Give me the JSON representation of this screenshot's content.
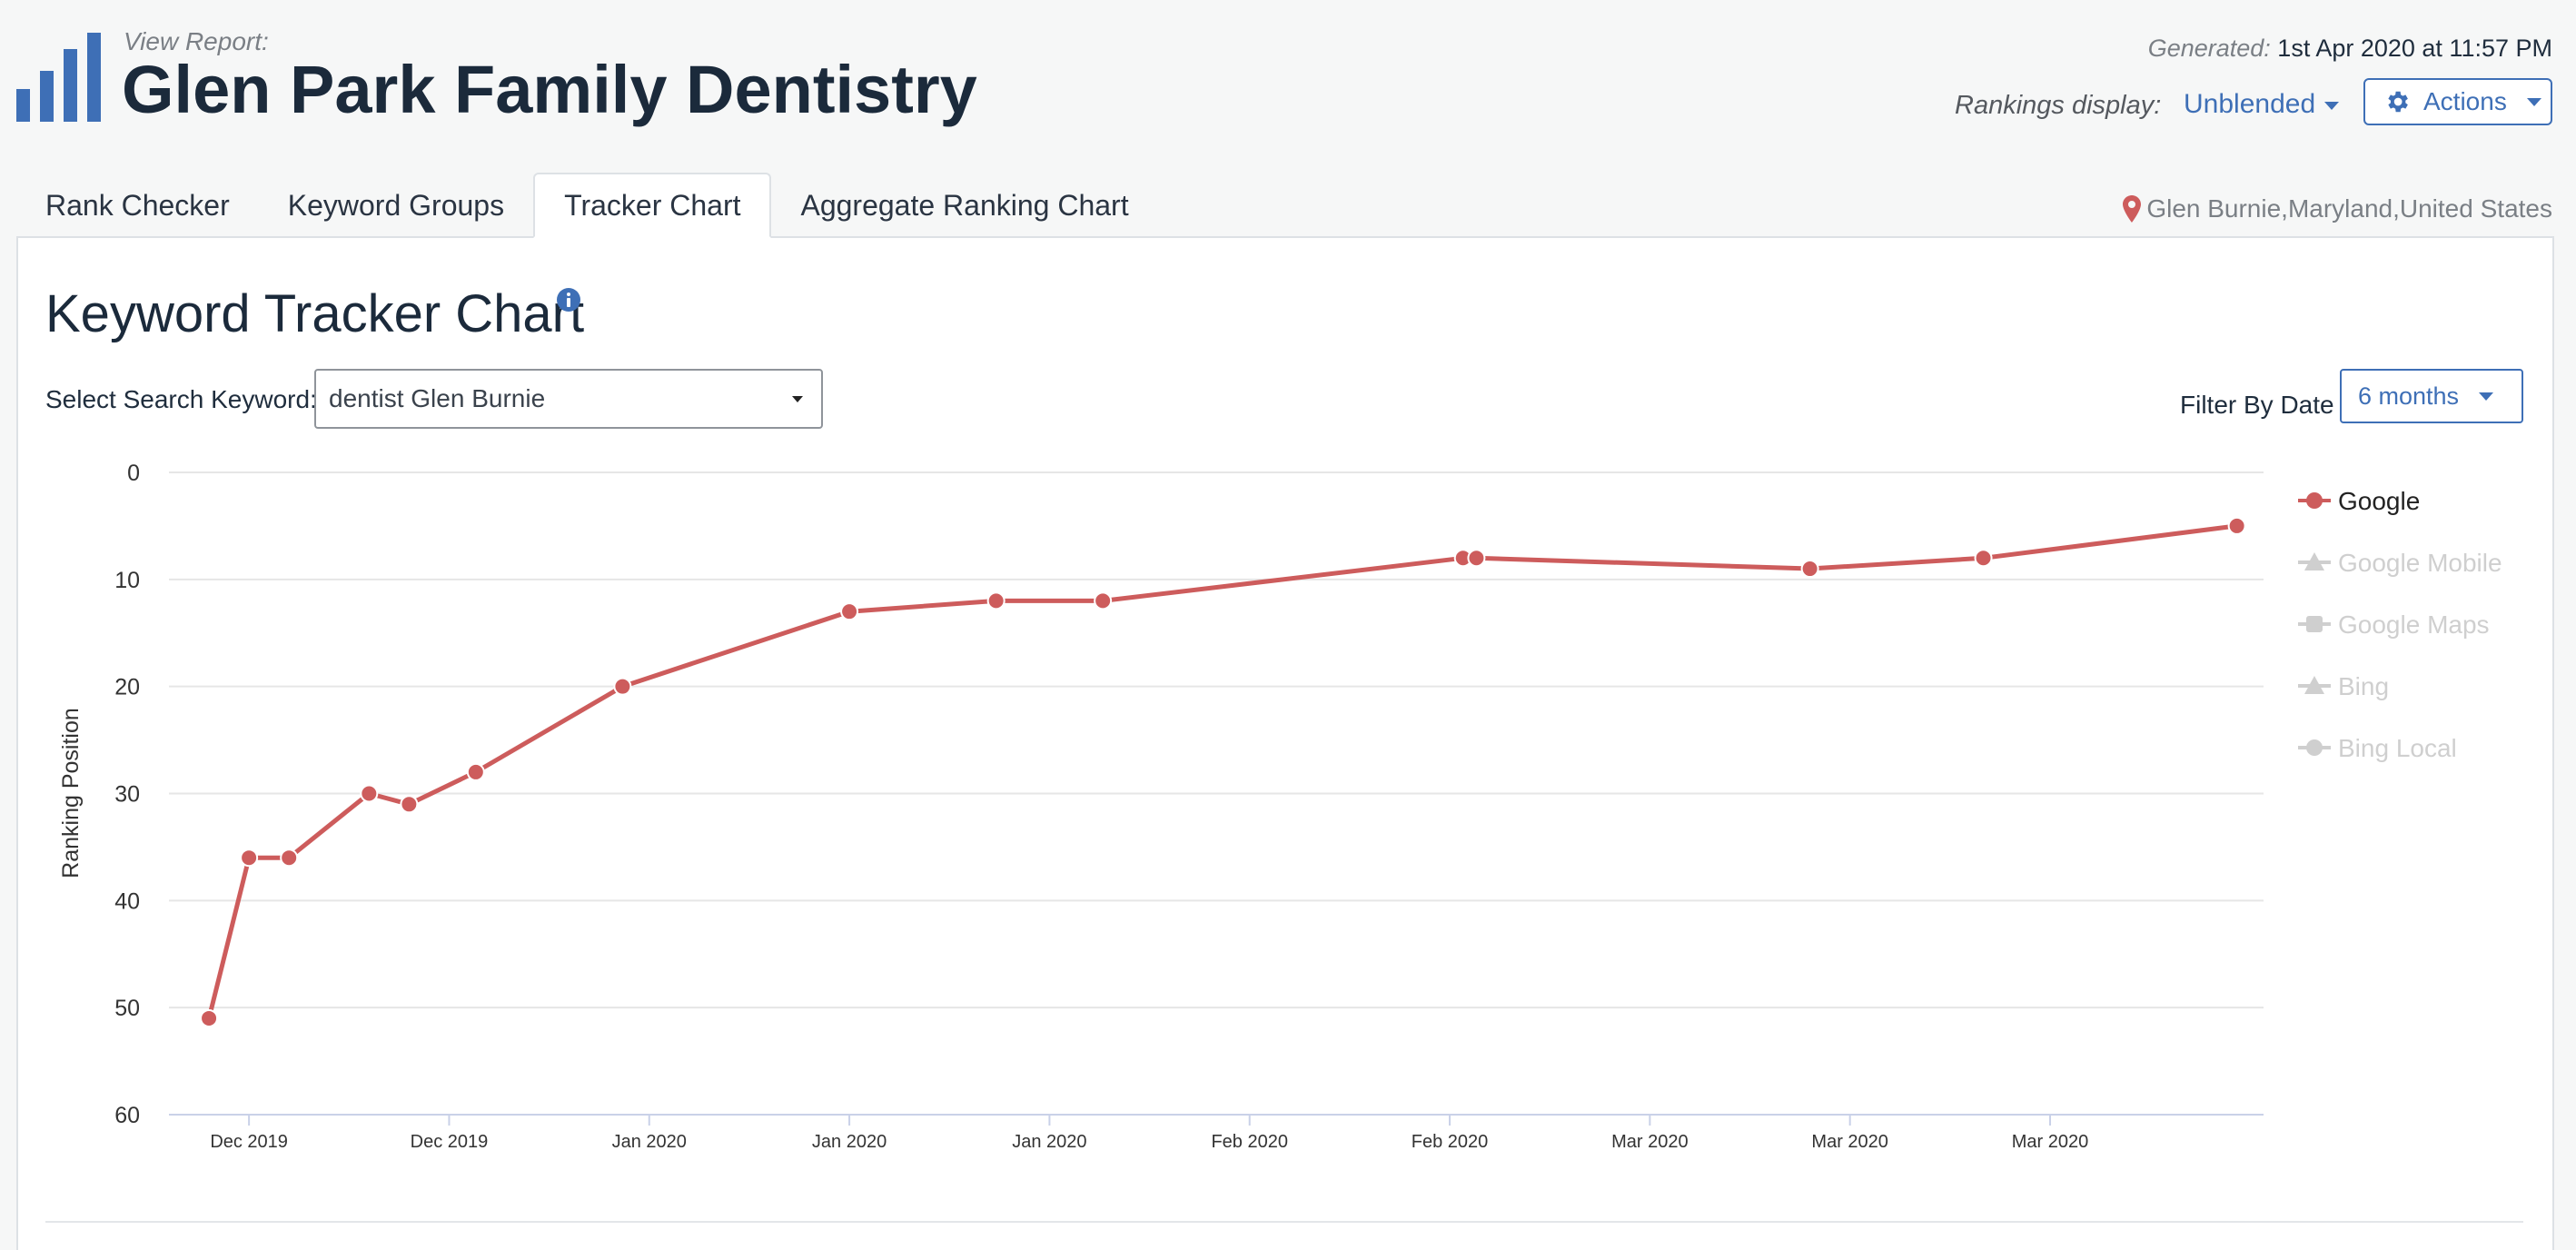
{
  "header": {
    "view_label": "View Report:",
    "title": "Glen Park Family Dentistry",
    "generated_label": "Generated:",
    "generated_value": "1st Apr 2020 at 11:57 PM",
    "rankings_display_label": "Rankings display:",
    "rankings_display_value": "Unblended",
    "actions_label": "Actions",
    "logo_icon": "bar-chart-logo-icon",
    "accent_color": "#3e6fb6"
  },
  "tabs": [
    {
      "label": "Rank Checker",
      "active": false
    },
    {
      "label": "Keyword Groups",
      "active": false
    },
    {
      "label": "Tracker Chart",
      "active": true
    },
    {
      "label": "Aggregate Ranking Chart",
      "active": false
    }
  ],
  "location": "Glen Burnie,Maryland,United States",
  "panel": {
    "title": "Keyword Tracker Chart",
    "keyword_label": "Select Search Keyword:",
    "keyword_value": "dentist Glen Burnie",
    "filter_label": "Filter By Date",
    "filter_value": "6 months"
  },
  "chart_data": {
    "type": "line",
    "ylabel": "Ranking Position",
    "ylim": [
      0,
      60
    ],
    "y_reversed": true,
    "yticks": [
      0,
      10,
      20,
      30,
      40,
      50,
      60
    ],
    "xticks": [
      {
        "date": "2019-12-04",
        "label": "Dec 2019"
      },
      {
        "date": "2019-12-19",
        "label": "Dec 2019"
      },
      {
        "date": "2020-01-03",
        "label": "Jan 2020"
      },
      {
        "date": "2020-01-18",
        "label": "Jan 2020"
      },
      {
        "date": "2020-02-02",
        "label": "Jan 2020"
      },
      {
        "date": "2020-02-17",
        "label": "Feb 2020"
      },
      {
        "date": "2020-03-03",
        "label": "Feb 2020"
      },
      {
        "date": "2020-03-18",
        "label": "Mar 2020"
      },
      {
        "date": "2020-04-02",
        "label": "Mar 2020"
      },
      {
        "date": "2020-04-17",
        "label": "Mar 2020"
      }
    ],
    "xlim": [
      "2019-11-28",
      "2020-05-03"
    ],
    "series": [
      {
        "name": "Google",
        "color": "#cd5c5c",
        "visible": true,
        "marker": "circle",
        "points": [
          {
            "x": "2019-12-01",
            "y": 51
          },
          {
            "x": "2019-12-04",
            "y": 36
          },
          {
            "x": "2019-12-07",
            "y": 36
          },
          {
            "x": "2019-12-13",
            "y": 30
          },
          {
            "x": "2019-12-16",
            "y": 31
          },
          {
            "x": "2019-12-21",
            "y": 28
          },
          {
            "x": "2020-01-01",
            "y": 20
          },
          {
            "x": "2020-01-18",
            "y": 13
          },
          {
            "x": "2020-01-29",
            "y": 12
          },
          {
            "x": "2020-02-06",
            "y": 12
          },
          {
            "x": "2020-03-04",
            "y": 8
          },
          {
            "x": "2020-03-05",
            "y": 8
          },
          {
            "x": "2020-03-30",
            "y": 9
          },
          {
            "x": "2020-04-12",
            "y": 8
          },
          {
            "x": "2020-05-01",
            "y": 5
          }
        ]
      },
      {
        "name": "Google Mobile",
        "color": "#cfcfcf",
        "visible": false,
        "marker": "triangle",
        "points": []
      },
      {
        "name": "Google Maps",
        "color": "#cfcfcf",
        "visible": false,
        "marker": "square",
        "points": []
      },
      {
        "name": "Bing",
        "color": "#cfcfcf",
        "visible": false,
        "marker": "triangle",
        "points": []
      },
      {
        "name": "Bing Local",
        "color": "#cfcfcf",
        "visible": false,
        "marker": "circle",
        "points": []
      }
    ],
    "legend_position": "right",
    "grid": true
  }
}
